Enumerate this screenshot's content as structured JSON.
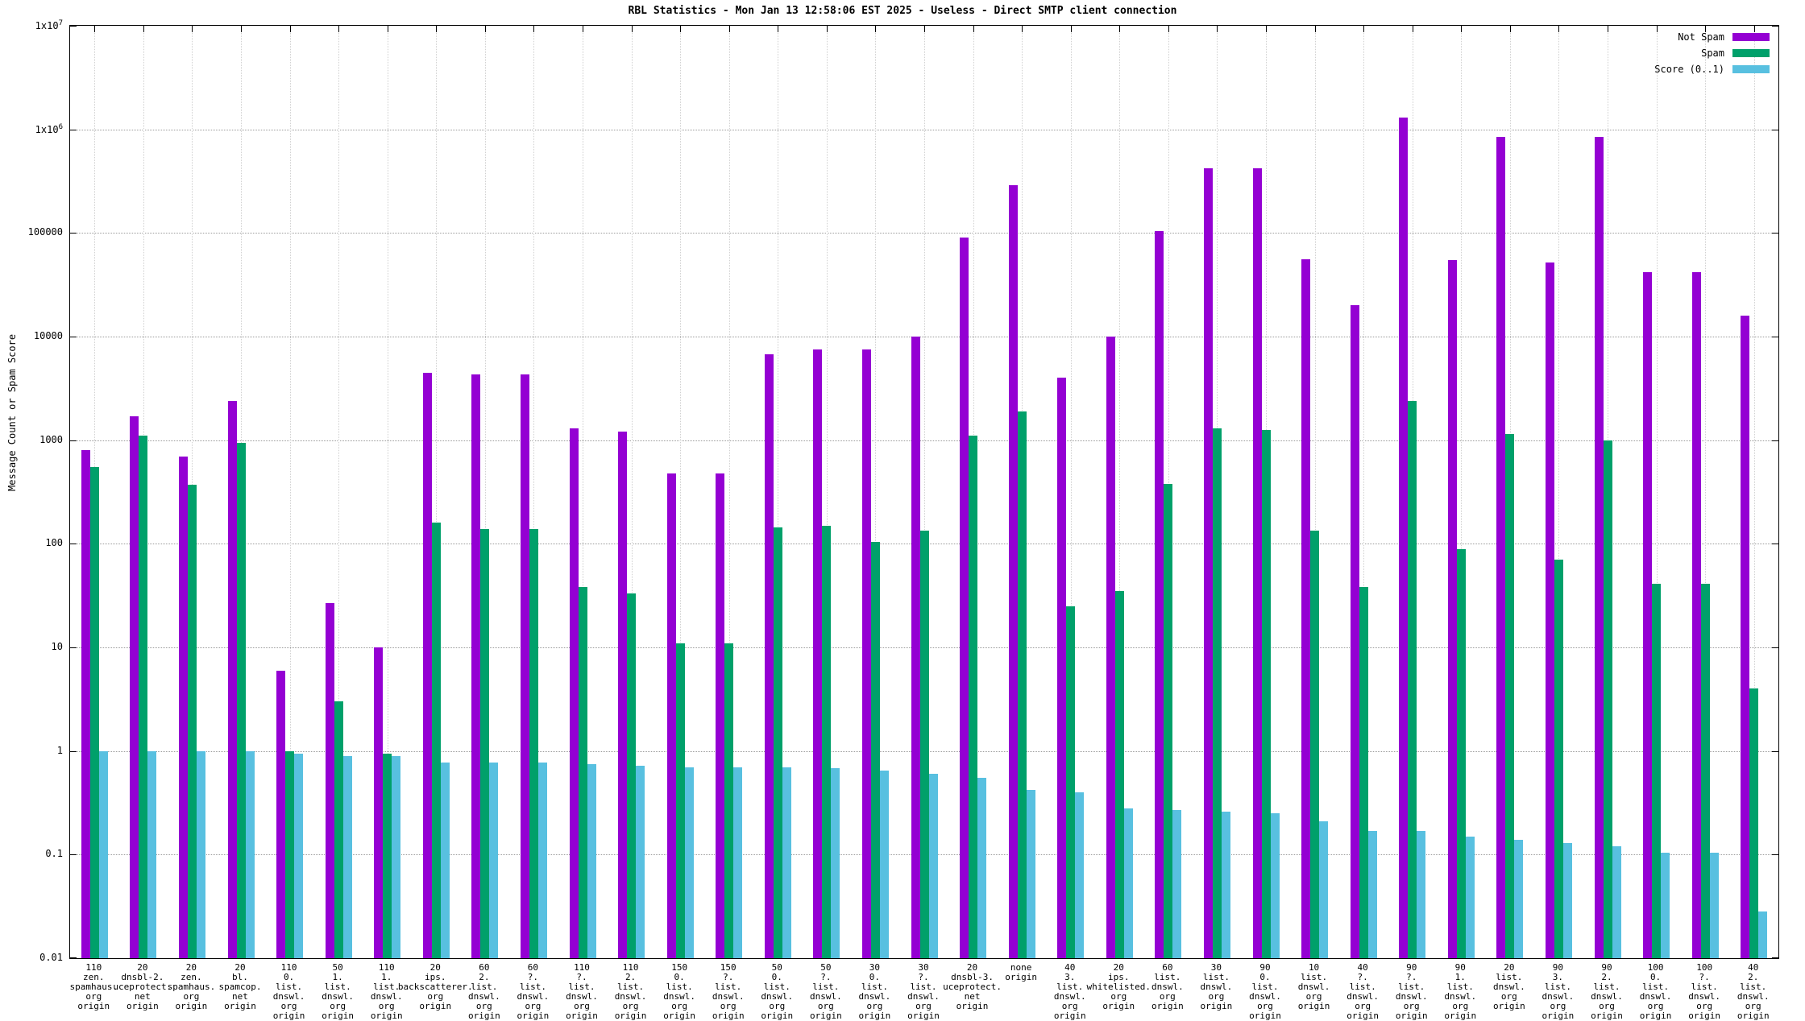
{
  "chart_data": {
    "type": "bar",
    "title": "RBL Statistics - Mon Jan 13 12:58:06 EST 2025 - Useless - Direct SMTP client connection",
    "xlabel": "",
    "ylabel": "Message Count or Spam Score",
    "y_scale": "log",
    "ylim": [
      0.01,
      10000000
    ],
    "y_ticks": [
      "1x10^7",
      "1x10^6",
      "100000",
      "10000",
      "1000",
      "100",
      "10",
      "1",
      "0.1",
      "0.01"
    ],
    "grid": true,
    "legend_position": "top-right",
    "categories": [
      [
        "110",
        "zen.",
        "spamhaus.",
        "org",
        "origin"
      ],
      [
        "20",
        "dnsbl-2.",
        "uceprotect.",
        "net",
        "origin"
      ],
      [
        "20",
        "zen.",
        "spamhaus.",
        "org",
        "origin"
      ],
      [
        "20",
        "bl.",
        "spamcop.",
        "net",
        "origin"
      ],
      [
        "110",
        "0.",
        "list.",
        "dnswl.",
        "org",
        "origin"
      ],
      [
        "50",
        "1.",
        "list.",
        "dnswl.",
        "org",
        "origin"
      ],
      [
        "110",
        "1.",
        "list.",
        "dnswl.",
        "org",
        "origin"
      ],
      [
        "20",
        "ips.",
        "backscatterer.",
        "org",
        "origin"
      ],
      [
        "60",
        "2.",
        "list.",
        "dnswl.",
        "org",
        "origin"
      ],
      [
        "60",
        "?.",
        "list.",
        "dnswl.",
        "org",
        "origin"
      ],
      [
        "110",
        "?.",
        "list.",
        "dnswl.",
        "org",
        "origin"
      ],
      [
        "110",
        "2.",
        "list.",
        "dnswl.",
        "org",
        "origin"
      ],
      [
        "150",
        "0.",
        "list.",
        "dnswl.",
        "org",
        "origin"
      ],
      [
        "150",
        "?.",
        "list.",
        "dnswl.",
        "org",
        "origin"
      ],
      [
        "50",
        "0.",
        "list.",
        "dnswl.",
        "org",
        "origin"
      ],
      [
        "50",
        "?.",
        "list.",
        "dnswl.",
        "org",
        "origin"
      ],
      [
        "30",
        "0.",
        "list.",
        "dnswl.",
        "org",
        "origin"
      ],
      [
        "30",
        "?.",
        "list.",
        "dnswl.",
        "org",
        "origin"
      ],
      [
        "20",
        "dnsbl-3.",
        "uceprotect.",
        "net",
        "origin"
      ],
      [
        "none",
        "origin"
      ],
      [
        "40",
        "3.",
        "list.",
        "dnswl.",
        "org",
        "origin"
      ],
      [
        "20",
        "ips.",
        "whitelisted.",
        "org",
        "origin"
      ],
      [
        "60",
        "list.",
        "dnswl.",
        "org",
        "origin"
      ],
      [
        "30",
        "list.",
        "dnswl.",
        "org",
        "origin"
      ],
      [
        "90",
        "0.",
        "list.",
        "dnswl.",
        "org",
        "origin"
      ],
      [
        "10",
        "list.",
        "dnswl.",
        "org",
        "origin"
      ],
      [
        "40",
        "?.",
        "list.",
        "dnswl.",
        "org",
        "origin"
      ],
      [
        "90",
        "?.",
        "list.",
        "dnswl.",
        "org",
        "origin"
      ],
      [
        "90",
        "1.",
        "list.",
        "dnswl.",
        "org",
        "origin"
      ],
      [
        "20",
        "list.",
        "dnswl.",
        "org",
        "origin"
      ],
      [
        "90",
        "3.",
        "list.",
        "dnswl.",
        "org",
        "origin"
      ],
      [
        "90",
        "2.",
        "list.",
        "dnswl.",
        "org",
        "origin"
      ],
      [
        "100",
        "0.",
        "list.",
        "dnswl.",
        "org",
        "origin"
      ],
      [
        "100",
        "?.",
        "list.",
        "dnswl.",
        "org",
        "origin"
      ],
      [
        "40",
        "2.",
        "list.",
        "dnswl.",
        "org",
        "origin"
      ]
    ],
    "series": [
      {
        "name": "Not Spam",
        "color": "#9400d3",
        "values": [
          800,
          1700,
          700,
          2400,
          6,
          27,
          10,
          4500,
          4300,
          4300,
          1300,
          1200,
          480,
          480,
          6800,
          7500,
          7500,
          10000,
          90000,
          290000,
          4000,
          10000,
          105000,
          420000,
          420000,
          56000,
          20000,
          1300000,
          55000,
          850000,
          52000,
          850000,
          42000,
          42000,
          16000
        ]
      },
      {
        "name": "Spam",
        "color": "#00a06a",
        "values": [
          550,
          1100,
          370,
          950,
          1.0,
          3,
          0.95,
          160,
          140,
          140,
          38,
          33,
          11,
          11,
          145,
          150,
          105,
          135,
          1100,
          1900,
          25,
          35,
          380,
          1300,
          1250,
          135,
          38,
          2400,
          88,
          1150,
          70,
          1000,
          41,
          41,
          4
        ]
      },
      {
        "name": "Score (0..1)",
        "color": "#58c0e0",
        "values": [
          1.0,
          1.0,
          1.0,
          1.0,
          0.95,
          0.9,
          0.9,
          0.78,
          0.78,
          0.78,
          0.75,
          0.72,
          0.7,
          0.7,
          0.7,
          0.68,
          0.65,
          0.6,
          0.55,
          0.42,
          0.4,
          0.28,
          0.27,
          0.26,
          0.25,
          0.21,
          0.17,
          0.17,
          0.15,
          0.14,
          0.13,
          0.12,
          0.105,
          0.105,
          0.028
        ]
      }
    ]
  }
}
